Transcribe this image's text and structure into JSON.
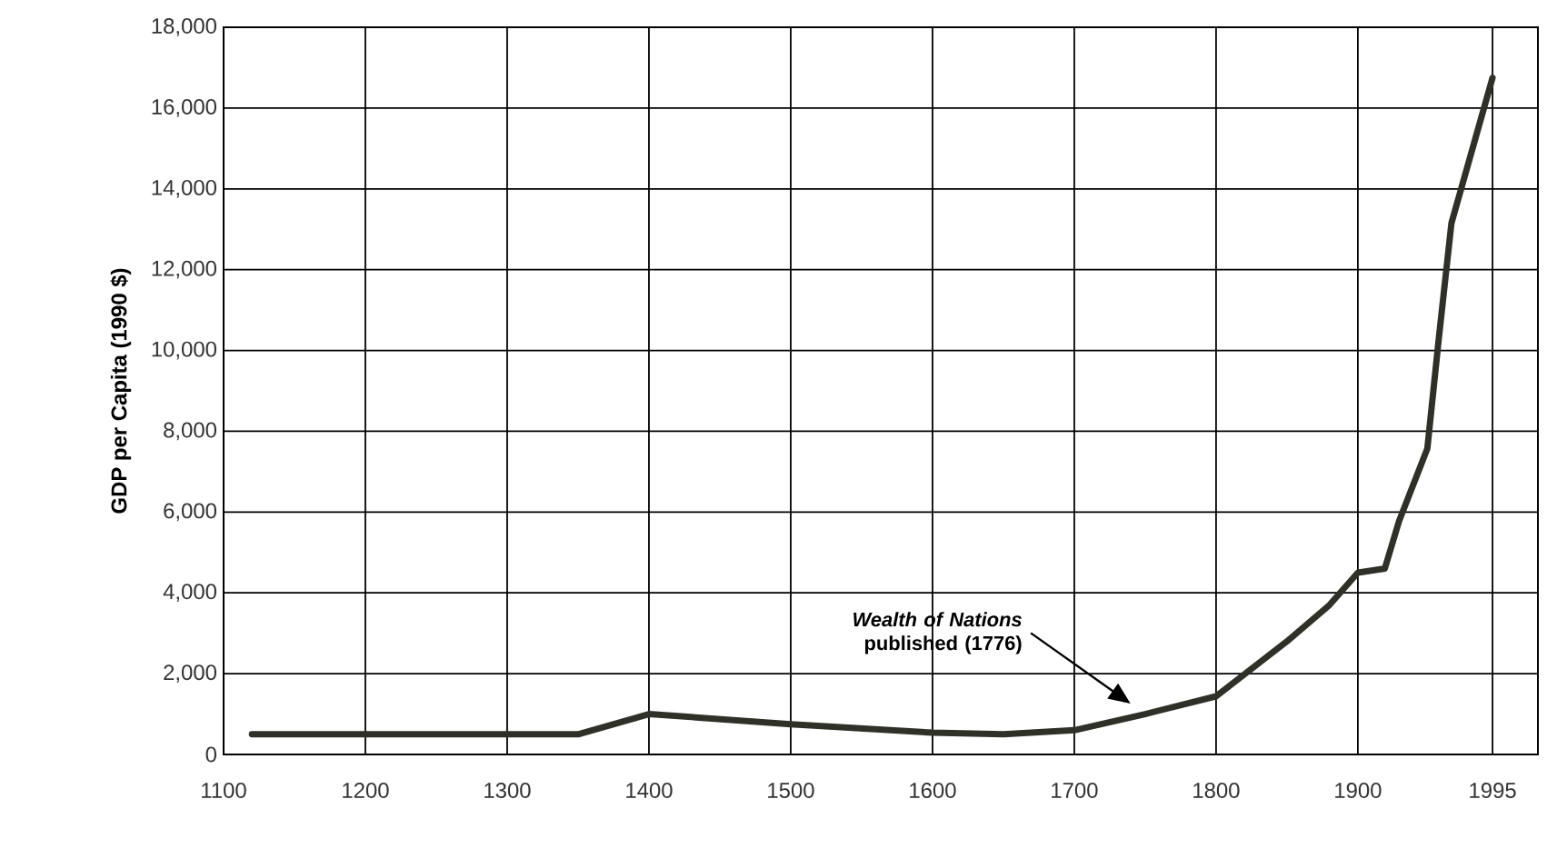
{
  "chart_data": {
    "type": "line",
    "ylabel": "GDP per Capita (1990 $)",
    "x": [
      1120,
      1350,
      1400,
      1500,
      1600,
      1650,
      1700,
      1750,
      1800,
      1850,
      1880,
      1900,
      1919,
      1929,
      1949,
      1957,
      1966,
      1995
    ],
    "values": [
      500,
      500,
      1000,
      750,
      540,
      500,
      600,
      1000,
      1440,
      2800,
      3700,
      4500,
      4600,
      5770,
      7570,
      10270,
      13150,
      16750
    ],
    "color": "#2f3129",
    "xlim": [
      1100,
      2027
    ],
    "xticks": [
      1100,
      1200,
      1300,
      1400,
      1500,
      1600,
      1700,
      1800,
      1900,
      1995
    ],
    "ylim": [
      0,
      18000
    ],
    "yticks": [
      0,
      {
        "value": 2000,
        "label": "2,000"
      },
      {
        "value": 4000,
        "label": "4,000"
      },
      {
        "value": 6000,
        "label": "6,000"
      },
      {
        "value": 8000,
        "label": "8,000"
      },
      {
        "value": 10000,
        "label": "10,000"
      },
      {
        "value": 12000,
        "label": "12,000"
      },
      {
        "value": 14000,
        "label": "14,000"
      },
      {
        "value": 16000,
        "label": "16,000"
      },
      {
        "value": 18000,
        "label": "18,000"
      }
    ],
    "grid": true,
    "annotations": [
      "*Wealth of Nations* published (1776)"
    ]
  }
}
